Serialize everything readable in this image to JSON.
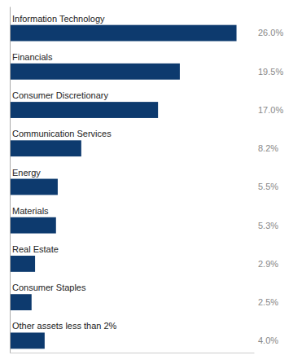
{
  "chart_data": {
    "type": "bar",
    "orientation": "horizontal",
    "categories": [
      "Other assets less than 2%",
      "Consumer Staples",
      "Real Estate",
      "Materials",
      "Energy",
      "Communication Services",
      "Consumer Discretionary",
      "Financials",
      "Information Technology"
    ],
    "values": [
      4.0,
      2.5,
      2.9,
      5.3,
      5.5,
      8.2,
      17.0,
      19.5,
      26.0
    ],
    "value_labels": [
      "4.0%",
      "2.5%",
      "2.9%",
      "5.3%",
      "5.5%",
      "8.2%",
      "17.0%",
      "19.5%",
      "26.0%"
    ],
    "data_labels": true,
    "color": "#0d3a6e",
    "xlim": [
      0,
      28
    ],
    "tick_labels": false,
    "grid": false
  }
}
